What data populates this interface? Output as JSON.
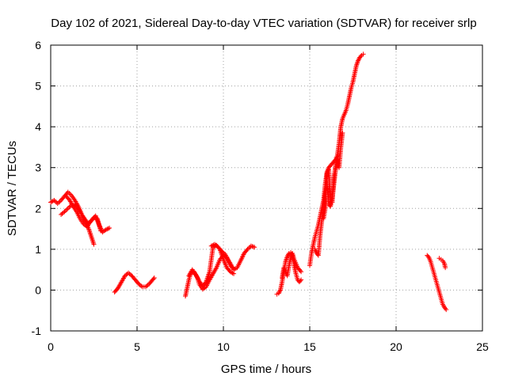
{
  "chart_data": {
    "type": "scatter",
    "title": "Day 102 of 2021, Sidereal Day-to-day VTEC variation (SDTVAR) for receiver srlp",
    "xlabel": "GPS time / hours",
    "ylabel": "SDTVAR / TECUs",
    "xlim": [
      0,
      25
    ],
    "ylim": [
      -1,
      6
    ],
    "xticks": [
      0,
      5,
      10,
      15,
      20,
      25
    ],
    "yticks": [
      -1,
      0,
      1,
      2,
      3,
      4,
      5,
      6
    ],
    "grid": true,
    "marker": "+",
    "color": "#ff0000",
    "series": [
      {
        "points": [
          [
            0.0,
            2.15
          ],
          [
            0.2,
            2.2
          ],
          [
            0.4,
            2.12
          ],
          [
            0.6,
            2.2
          ],
          [
            0.8,
            2.3
          ],
          [
            1.0,
            2.4
          ],
          [
            1.2,
            2.32
          ],
          [
            1.4,
            2.2
          ],
          [
            1.6,
            2.05
          ],
          [
            1.8,
            1.85
          ],
          [
            2.0,
            1.7
          ],
          [
            2.2,
            1.5
          ],
          [
            2.4,
            1.25
          ],
          [
            2.5,
            1.12
          ]
        ]
      },
      {
        "points": [
          [
            0.6,
            1.85
          ],
          [
            0.8,
            1.92
          ],
          [
            1.0,
            2.0
          ],
          [
            1.2,
            2.08
          ],
          [
            1.4,
            2.1
          ],
          [
            1.6,
            2.0
          ],
          [
            1.8,
            1.85
          ],
          [
            2.0,
            1.72
          ],
          [
            2.2,
            1.62
          ],
          [
            2.4,
            1.72
          ],
          [
            2.6,
            1.82
          ],
          [
            2.8,
            1.6
          ],
          [
            3.0,
            1.42
          ],
          [
            3.2,
            1.48
          ],
          [
            3.4,
            1.52
          ]
        ]
      },
      {
        "points": [
          [
            0.9,
            2.3
          ],
          [
            1.1,
            2.2
          ],
          [
            1.3,
            2.05
          ],
          [
            1.5,
            1.92
          ],
          [
            1.7,
            1.75
          ],
          [
            1.9,
            1.62
          ],
          [
            2.1,
            1.55
          ],
          [
            2.3,
            1.68
          ],
          [
            2.5,
            1.78
          ],
          [
            2.7,
            1.75
          ],
          [
            2.9,
            1.45
          ]
        ]
      },
      {
        "points": [
          [
            3.7,
            -0.05
          ],
          [
            3.9,
            0.05
          ],
          [
            4.1,
            0.2
          ],
          [
            4.3,
            0.35
          ],
          [
            4.5,
            0.42
          ],
          [
            4.7,
            0.35
          ],
          [
            4.9,
            0.25
          ],
          [
            5.1,
            0.15
          ],
          [
            5.3,
            0.08
          ],
          [
            5.5,
            0.08
          ],
          [
            5.7,
            0.15
          ],
          [
            5.9,
            0.25
          ],
          [
            6.0,
            0.3
          ]
        ]
      },
      {
        "points": [
          [
            7.8,
            -0.15
          ],
          [
            7.9,
            0.05
          ],
          [
            8.0,
            0.25
          ],
          [
            8.1,
            0.4
          ],
          [
            8.3,
            0.45
          ],
          [
            8.5,
            0.3
          ],
          [
            8.6,
            0.15
          ],
          [
            8.8,
            0.02
          ],
          [
            9.0,
            0.08
          ],
          [
            9.2,
            0.25
          ],
          [
            9.4,
            0.4
          ],
          [
            9.6,
            0.55
          ],
          [
            9.8,
            0.75
          ],
          [
            10.0,
            0.85
          ],
          [
            10.2,
            0.8
          ],
          [
            10.4,
            0.65
          ],
          [
            10.6,
            0.5
          ],
          [
            10.8,
            0.55
          ],
          [
            11.0,
            0.72
          ],
          [
            11.2,
            0.9
          ],
          [
            11.4,
            1.0
          ],
          [
            11.6,
            1.08
          ],
          [
            11.8,
            1.05
          ]
        ]
      },
      {
        "points": [
          [
            8.0,
            0.35
          ],
          [
            8.2,
            0.5
          ],
          [
            8.4,
            0.38
          ],
          [
            8.6,
            0.22
          ],
          [
            8.8,
            0.1
          ],
          [
            9.0,
            0.2
          ],
          [
            9.2,
            0.45
          ],
          [
            9.4,
            1.05
          ],
          [
            9.6,
            1.1
          ],
          [
            9.8,
            1.0
          ],
          [
            10.0,
            0.75
          ],
          [
            10.2,
            0.55
          ],
          [
            10.4,
            0.45
          ],
          [
            10.6,
            0.4
          ]
        ]
      },
      {
        "points": [
          [
            9.3,
            1.08
          ],
          [
            9.5,
            1.12
          ],
          [
            9.7,
            1.05
          ],
          [
            9.9,
            0.95
          ],
          [
            10.1,
            0.88
          ],
          [
            10.3,
            0.7
          ],
          [
            10.5,
            0.55
          ]
        ]
      },
      {
        "points": [
          [
            13.1,
            -0.1
          ],
          [
            13.2,
            -0.08
          ],
          [
            13.3,
            0.0
          ],
          [
            13.4,
            0.2
          ],
          [
            13.5,
            0.45
          ],
          [
            13.6,
            0.7
          ],
          [
            13.7,
            0.82
          ],
          [
            13.8,
            0.9
          ],
          [
            13.9,
            0.92
          ],
          [
            14.0,
            0.85
          ],
          [
            14.1,
            0.6
          ],
          [
            14.2,
            0.4
          ],
          [
            14.3,
            0.25
          ],
          [
            14.4,
            0.2
          ],
          [
            14.5,
            0.25
          ]
        ]
      },
      {
        "points": [
          [
            13.4,
            0.3
          ],
          [
            13.5,
            0.55
          ],
          [
            13.6,
            0.45
          ],
          [
            13.7,
            0.35
          ],
          [
            13.8,
            0.6
          ],
          [
            13.9,
            0.8
          ],
          [
            14.0,
            0.9
          ],
          [
            14.1,
            0.75
          ],
          [
            14.2,
            0.65
          ],
          [
            14.3,
            0.55
          ],
          [
            14.4,
            0.5
          ],
          [
            14.5,
            0.45
          ]
        ]
      },
      {
        "points": [
          [
            15.0,
            0.6
          ],
          [
            15.05,
            0.75
          ],
          [
            15.1,
            0.9
          ],
          [
            15.2,
            1.1
          ],
          [
            15.3,
            1.3
          ],
          [
            15.4,
            1.45
          ],
          [
            15.5,
            1.6
          ],
          [
            15.6,
            1.8
          ],
          [
            15.7,
            2.0
          ],
          [
            15.8,
            2.2
          ],
          [
            15.9,
            2.6
          ],
          [
            16.0,
            2.9
          ],
          [
            16.1,
            3.0
          ],
          [
            16.2,
            3.05
          ],
          [
            16.3,
            3.1
          ],
          [
            16.4,
            3.15
          ],
          [
            16.5,
            3.2
          ],
          [
            16.6,
            3.3
          ],
          [
            16.7,
            3.6
          ],
          [
            16.8,
            4.0
          ],
          [
            16.9,
            4.2
          ],
          [
            17.0,
            4.3
          ],
          [
            17.1,
            4.4
          ],
          [
            17.2,
            4.55
          ],
          [
            17.3,
            4.75
          ],
          [
            17.4,
            4.95
          ],
          [
            17.5,
            5.1
          ],
          [
            17.6,
            5.3
          ],
          [
            17.7,
            5.5
          ],
          [
            17.8,
            5.62
          ],
          [
            17.9,
            5.7
          ],
          [
            18.0,
            5.75
          ],
          [
            18.1,
            5.78
          ]
        ]
      },
      {
        "points": [
          [
            15.3,
            1.0
          ],
          [
            15.4,
            0.9
          ],
          [
            15.5,
            0.85
          ],
          [
            15.6,
            1.35
          ],
          [
            15.7,
            1.7
          ],
          [
            15.8,
            1.95
          ],
          [
            15.9,
            2.35
          ],
          [
            16.0,
            2.6
          ],
          [
            16.1,
            2.1
          ],
          [
            16.2,
            2.05
          ],
          [
            16.3,
            2.25
          ],
          [
            16.4,
            2.6
          ],
          [
            16.5,
            2.95
          ],
          [
            16.6,
            3.25
          ]
        ]
      },
      {
        "points": [
          [
            15.8,
            1.75
          ],
          [
            15.9,
            2.0
          ],
          [
            16.0,
            2.85
          ],
          [
            16.1,
            2.95
          ],
          [
            16.2,
            2.3
          ],
          [
            16.3,
            2.15
          ],
          [
            16.4,
            2.75
          ],
          [
            16.5,
            3.05
          ],
          [
            16.6,
            3.2
          ],
          [
            16.7,
            3.0
          ],
          [
            16.8,
            3.5
          ],
          [
            16.9,
            3.85
          ]
        ]
      },
      {
        "points": [
          [
            21.8,
            0.85
          ],
          [
            21.9,
            0.8
          ],
          [
            22.0,
            0.7
          ],
          [
            22.1,
            0.55
          ],
          [
            22.2,
            0.4
          ],
          [
            22.3,
            0.25
          ],
          [
            22.4,
            0.1
          ],
          [
            22.5,
            -0.05
          ],
          [
            22.6,
            -0.2
          ],
          [
            22.7,
            -0.35
          ],
          [
            22.8,
            -0.42
          ],
          [
            22.9,
            -0.48
          ]
        ]
      },
      {
        "points": [
          [
            22.5,
            0.78
          ],
          [
            22.6,
            0.75
          ],
          [
            22.7,
            0.72
          ],
          [
            22.8,
            0.65
          ],
          [
            22.85,
            0.55
          ]
        ]
      }
    ]
  }
}
